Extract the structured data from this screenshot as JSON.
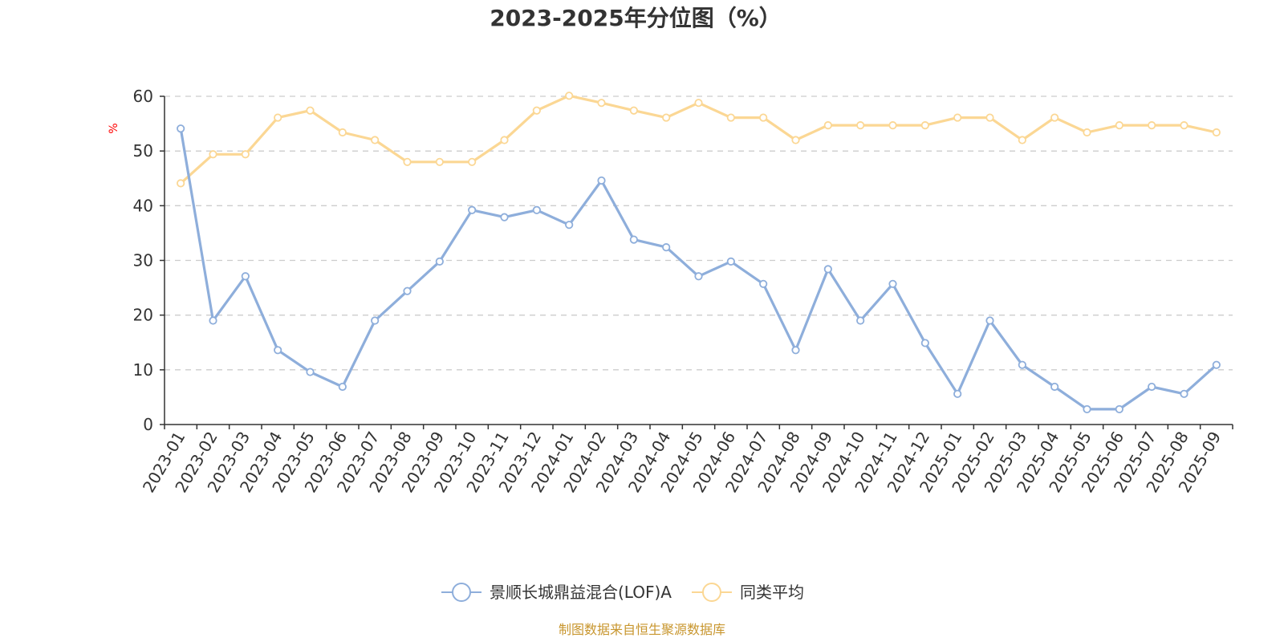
{
  "chart_data": {
    "type": "line",
    "title": "2023-2025年分位图（%）",
    "ylabel": "%",
    "xlabel": "",
    "ylim": [
      0,
      60
    ],
    "yticks": [
      0,
      10,
      20,
      30,
      40,
      50,
      60
    ],
    "grid": true,
    "legend_position": "bottom-center",
    "categories": [
      "2023-01",
      "2023-02",
      "2023-03",
      "2023-04",
      "2023-05",
      "2023-06",
      "2023-07",
      "2023-08",
      "2023-09",
      "2023-10",
      "2023-11",
      "2023-12",
      "2024-01",
      "2024-02",
      "2024-03",
      "2024-04",
      "2024-05",
      "2024-06",
      "2024-07",
      "2024-08",
      "2024-09",
      "2024-10",
      "2024-11",
      "2024-12",
      "2025-01",
      "2025-02",
      "2025-03",
      "2025-04",
      "2025-05",
      "2025-06",
      "2025-07",
      "2025-08",
      "2025-09"
    ],
    "series": [
      {
        "name": "景顺长城鼎益混合(LOF)A",
        "color": "#8eaedb",
        "values": [
          54.1,
          19.0,
          27.1,
          13.6,
          9.6,
          6.9,
          19.0,
          24.4,
          29.8,
          39.2,
          37.9,
          39.2,
          36.5,
          44.6,
          33.8,
          32.4,
          27.1,
          29.8,
          25.7,
          13.6,
          28.4,
          19.0,
          25.7,
          14.9,
          5.6,
          19.0,
          10.9,
          6.9,
          2.8,
          2.8,
          6.9,
          5.6,
          10.9
        ]
      },
      {
        "name": "同类平均",
        "color": "#fbd794",
        "values": [
          44.1,
          49.4,
          49.4,
          56.1,
          57.4,
          53.4,
          52.0,
          48.0,
          48.0,
          48.0,
          52.0,
          57.4,
          60.1,
          58.8,
          57.4,
          56.1,
          58.8,
          56.1,
          56.1,
          52.0,
          54.7,
          54.7,
          54.7,
          54.7,
          56.1,
          56.1,
          52.0,
          56.1,
          53.4,
          54.7,
          54.7,
          54.7,
          53.4
        ]
      }
    ]
  },
  "source_text": "制图数据来自恒生聚源数据库",
  "colors": {
    "title": "#333333",
    "unit_label": "#ff0000",
    "source": "#c8962e",
    "grid": "#cccccc",
    "axis": "#333333"
  }
}
